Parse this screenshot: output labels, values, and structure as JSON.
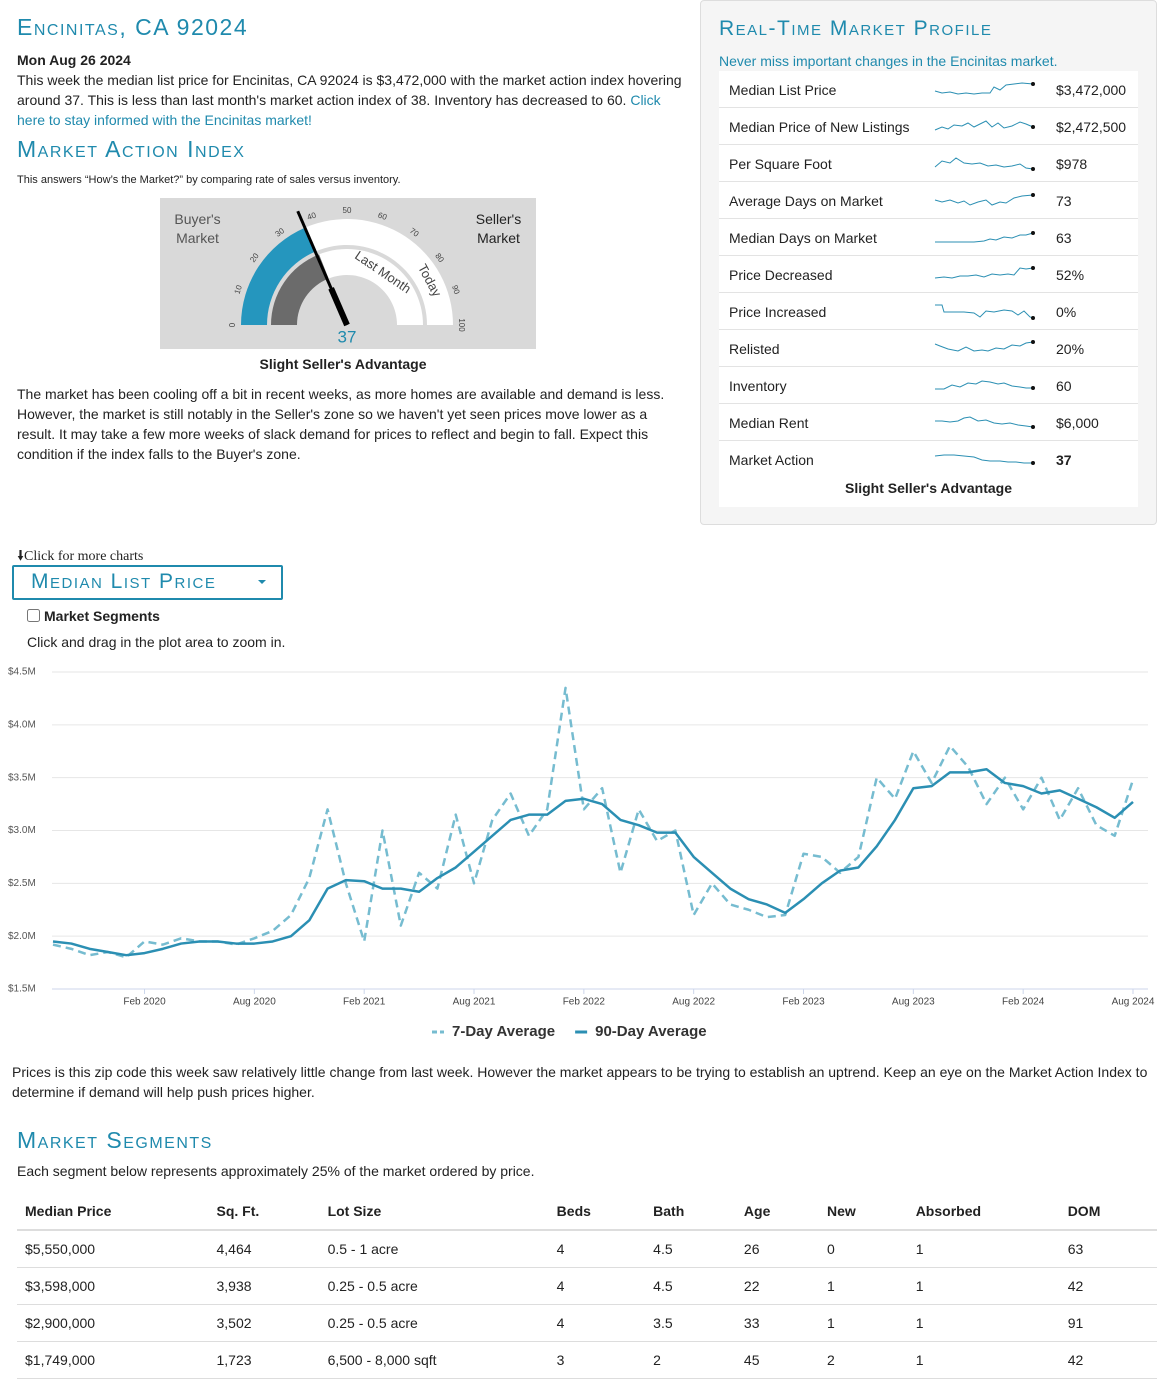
{
  "header": {
    "title": "Encinitas, CA 92024",
    "date": "Mon Aug 26 2024",
    "summary": "This week the median list price for Encinitas, CA 92024 is $3,472,000 with the market action index hovering around 37. This is less than last month's market action index of 38. Inventory has decreased to 60.",
    "link": "Click here to stay informed with the Encinitas market!"
  },
  "market_action": {
    "title": "Market Action Index",
    "subtitle": "This answers “How’s the Market?” by comparing rate of sales versus inventory.",
    "gauge": {
      "buyers_label": "Buyer's Market",
      "sellers_label": "Seller's Market",
      "ticks": [
        0,
        10,
        20,
        30,
        40,
        50,
        60,
        70,
        80,
        90,
        100
      ],
      "last_month_label": "Last Month",
      "today_label": "Today",
      "value": 37,
      "last_month_value": 38
    },
    "caption": "Slight Seller's Advantage",
    "paragraph": "The market has been cooling off a bit in recent weeks, as more homes are available and demand is less. However, the market is still notably in the Seller's zone so we haven't yet seen prices move lower as a result. It may take a few more weeks of slack demand for prices to reflect and begin to fall. Expect this condition if the index falls to the Buyer's zone."
  },
  "profile": {
    "title": "Real-Time Market Profile",
    "subtitle": "Never miss important changes in the Encinitas market.",
    "rows": [
      {
        "label": "Median List Price",
        "value": "$3,472,000"
      },
      {
        "label": "Median Price of New Listings",
        "value": "$2,472,500"
      },
      {
        "label": "Per Square Foot",
        "value": "$978"
      },
      {
        "label": "Average Days on Market",
        "value": 73
      },
      {
        "label": "Median Days on Market",
        "value": 63
      },
      {
        "label": "Price Decreased",
        "value": "52%"
      },
      {
        "label": "Price Increased",
        "value": "0%"
      },
      {
        "label": "Relisted",
        "value": "20%"
      },
      {
        "label": "Inventory",
        "value": 60
      },
      {
        "label": "Median Rent",
        "value": "$6,000"
      },
      {
        "label": "Market Action",
        "value": 37
      }
    ],
    "caption": "Slight Seller's Advantage"
  },
  "charts_nav": {
    "more": "Click for more charts",
    "dropdown": "Median List Price",
    "checkbox": "Market Segments",
    "hint": "Click and drag in the plot area to zoom in."
  },
  "chart_data": {
    "type": "line",
    "x": [
      "2019-09",
      "2019-10",
      "2019-11",
      "2019-12",
      "2020-01",
      "2020-02",
      "2020-03",
      "2020-04",
      "2020-05",
      "2020-06",
      "2020-07",
      "2020-08",
      "2020-09",
      "2020-10",
      "2020-11",
      "2020-12",
      "2021-01",
      "2021-02",
      "2021-03",
      "2021-04",
      "2021-05",
      "2021-06",
      "2021-07",
      "2021-08",
      "2021-09",
      "2021-10",
      "2021-11",
      "2021-12",
      "2022-01",
      "2022-02",
      "2022-03",
      "2022-04",
      "2022-05",
      "2022-06",
      "2022-07",
      "2022-08",
      "2022-09",
      "2022-10",
      "2022-11",
      "2022-12",
      "2023-01",
      "2023-02",
      "2023-03",
      "2023-04",
      "2023-05",
      "2023-06",
      "2023-07",
      "2023-08",
      "2023-09",
      "2023-10",
      "2023-11",
      "2023-12",
      "2024-01",
      "2024-02",
      "2024-03",
      "2024-04",
      "2024-05",
      "2024-06",
      "2024-07",
      "2024-08"
    ],
    "series": [
      {
        "name": "7-Day Average",
        "color": "#76bcd0",
        "dash": true,
        "values": [
          1920000,
          1880000,
          1820000,
          1850000,
          1800000,
          1950000,
          1920000,
          1980000,
          1950000,
          1950000,
          1920000,
          1980000,
          2050000,
          2200000,
          2550000,
          3200000,
          2500000,
          1950000,
          3000000,
          2100000,
          2600000,
          2450000,
          3150000,
          2500000,
          3100000,
          3350000,
          2950000,
          3200000,
          4350000,
          3200000,
          3400000,
          2600000,
          3200000,
          2900000,
          3000000,
          2200000,
          2500000,
          2300000,
          2250000,
          2180000,
          2200000,
          2780000,
          2750000,
          2600000,
          2750000,
          3500000,
          3300000,
          3750000,
          3450000,
          3800000,
          3600000,
          3250000,
          3500000,
          3200000,
          3500000,
          3100000,
          3400000,
          3050000,
          2950000,
          3480000
        ]
      },
      {
        "name": "90-Day Average",
        "color": "#2b8fb3",
        "dash": false,
        "values": [
          1950000,
          1930000,
          1880000,
          1850000,
          1820000,
          1840000,
          1880000,
          1930000,
          1950000,
          1950000,
          1930000,
          1930000,
          1950000,
          2000000,
          2150000,
          2450000,
          2530000,
          2520000,
          2450000,
          2450000,
          2420000,
          2550000,
          2650000,
          2800000,
          2950000,
          3100000,
          3150000,
          3150000,
          3280000,
          3300000,
          3250000,
          3100000,
          3050000,
          2980000,
          2980000,
          2750000,
          2600000,
          2450000,
          2350000,
          2300000,
          2220000,
          2350000,
          2500000,
          2620000,
          2650000,
          2850000,
          3100000,
          3400000,
          3420000,
          3550000,
          3550000,
          3580000,
          3450000,
          3420000,
          3350000,
          3380000,
          3300000,
          3220000,
          3120000,
          3270000
        ]
      }
    ],
    "xlim": [
      "2019-09",
      "2024-08"
    ],
    "xticks": [
      {
        "value": "2020-02",
        "label": "Feb 2020"
      },
      {
        "value": "2020-08",
        "label": "Aug 2020"
      },
      {
        "value": "2021-02",
        "label": "Feb 2021"
      },
      {
        "value": "2021-08",
        "label": "Aug 2021"
      },
      {
        "value": "2022-02",
        "label": "Feb 2022"
      },
      {
        "value": "2022-08",
        "label": "Aug 2022"
      },
      {
        "value": "2023-02",
        "label": "Feb 2023"
      },
      {
        "value": "2023-08",
        "label": "Aug 2023"
      },
      {
        "value": "2024-02",
        "label": "Feb 2024"
      },
      {
        "value": "2024-08",
        "label": "Aug 2024"
      }
    ],
    "ylim": [
      1500000,
      4500000
    ],
    "yticks": [
      {
        "value": 1500000,
        "label": "$1.5M"
      },
      {
        "value": 2000000,
        "label": "$2.0M"
      },
      {
        "value": 2500000,
        "label": "$2.5M"
      },
      {
        "value": 3000000,
        "label": "$3.0M"
      },
      {
        "value": 3500000,
        "label": "$3.5M"
      },
      {
        "value": 4000000,
        "label": "$4.0M"
      },
      {
        "value": 4500000,
        "label": "$4.5M"
      }
    ],
    "grid": true,
    "legend": "bottom"
  },
  "commentary": "Prices is this zip code this week saw relatively little change from last week. However the market appears to be trying to establish an uptrend. Keep an eye on the Market Action Index to determine if demand will help push prices higher.",
  "segments": {
    "title": "Market Segments",
    "subtitle": "Each segment below represents approximately 25% of the market ordered by price.",
    "table": {
      "header": [
        "Median Price",
        "Sq. Ft.",
        "Lot Size",
        "Beds",
        "Bath",
        "Age",
        "New",
        "Absorbed",
        "DOM"
      ],
      "rows": [
        [
          "$5,550,000",
          "4,464",
          "0.5 - 1 acre",
          4,
          4.5,
          26,
          0,
          1,
          63
        ],
        [
          "$3,598,000",
          "3,938",
          "0.25 - 0.5 acre",
          4,
          4.5,
          22,
          1,
          1,
          42
        ],
        [
          "$2,900,000",
          "3,502",
          "0.25 - 0.5 acre",
          4,
          3.5,
          33,
          1,
          1,
          91
        ],
        [
          "$1,749,000",
          "1,723",
          "6,500 - 8,000 sqft",
          3,
          2,
          45,
          2,
          1,
          42
        ]
      ]
    }
  }
}
